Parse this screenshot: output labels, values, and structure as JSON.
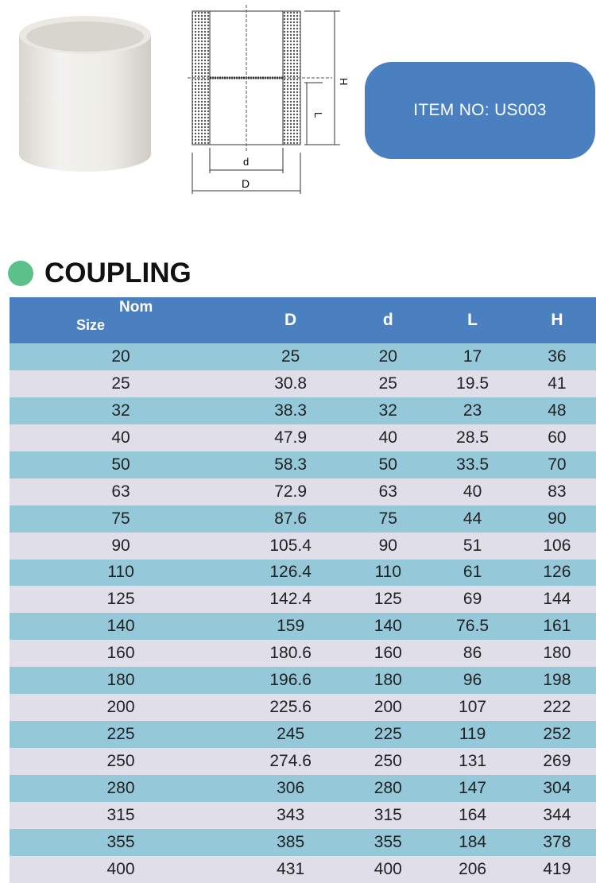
{
  "item_no": "ITEM NO: US003",
  "title": "COUPLING",
  "drawing_labels": {
    "H": "H",
    "L": "L",
    "d": "d",
    "D": "D"
  },
  "colors": {
    "header": "#4a7fc0",
    "row_blue": "#95c9da",
    "row_grey": "#dfdee9",
    "dot": "#5cc08a"
  },
  "table": {
    "header_size": "Size",
    "header_nom": "Nom",
    "columns": [
      "D",
      "d",
      "L",
      "H"
    ],
    "rows": [
      [
        "20",
        "25",
        "20",
        "17",
        "36"
      ],
      [
        "25",
        "30.8",
        "25",
        "19.5",
        "41"
      ],
      [
        "32",
        "38.3",
        "32",
        "23",
        "48"
      ],
      [
        "40",
        "47.9",
        "40",
        "28.5",
        "60"
      ],
      [
        "50",
        "58.3",
        "50",
        "33.5",
        "70"
      ],
      [
        "63",
        "72.9",
        "63",
        "40",
        "83"
      ],
      [
        "75",
        "87.6",
        "75",
        "44",
        "90"
      ],
      [
        "90",
        "105.4",
        "90",
        "51",
        "106"
      ],
      [
        "110",
        "126.4",
        "110",
        "61",
        "126"
      ],
      [
        "125",
        "142.4",
        "125",
        "69",
        "144"
      ],
      [
        "140",
        "159",
        "140",
        "76.5",
        "161"
      ],
      [
        "160",
        "180.6",
        "160",
        "86",
        "180"
      ],
      [
        "180",
        "196.6",
        "180",
        "96",
        "198"
      ],
      [
        "200",
        "225.6",
        "200",
        "107",
        "222"
      ],
      [
        "225",
        "245",
        "225",
        "119",
        "252"
      ],
      [
        "250",
        "274.6",
        "250",
        "131",
        "269"
      ],
      [
        "280",
        "306",
        "280",
        "147",
        "304"
      ],
      [
        "315",
        "343",
        "315",
        "164",
        "344"
      ],
      [
        "355",
        "385",
        "355",
        "184",
        "378"
      ],
      [
        "400",
        "431",
        "400",
        "206",
        "419"
      ]
    ]
  }
}
